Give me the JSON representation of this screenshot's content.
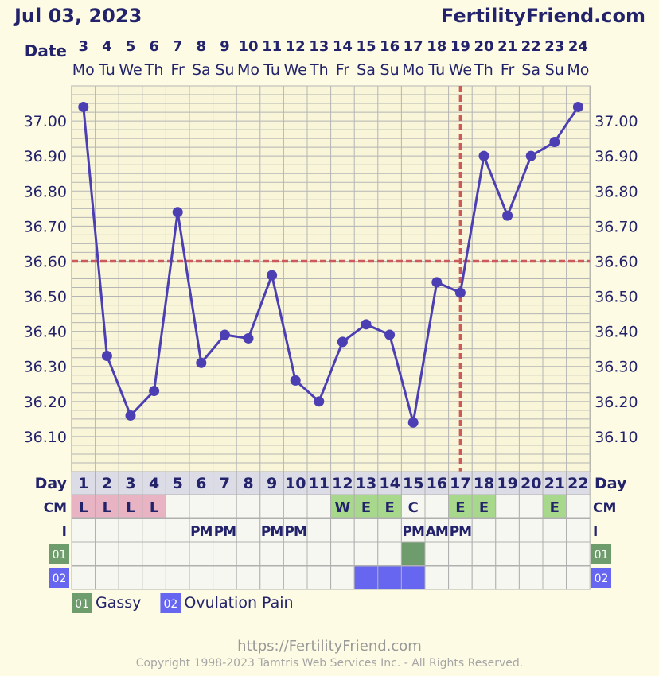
{
  "header": {
    "date": "Jul 03, 2023",
    "brand": "FertilityFriend.com",
    "date_row_label": "Date"
  },
  "chart_data": {
    "type": "line",
    "dates": [
      "3",
      "4",
      "5",
      "6",
      "7",
      "8",
      "9",
      "10",
      "11",
      "12",
      "13",
      "14",
      "15",
      "16",
      "17",
      "18",
      "19",
      "20",
      "21",
      "22",
      "23",
      "24"
    ],
    "weekdays": [
      "Mo",
      "Tu",
      "We",
      "Th",
      "Fr",
      "Sa",
      "Su",
      "Mo",
      "Tu",
      "We",
      "Th",
      "Fr",
      "Sa",
      "Su",
      "Mo",
      "Tu",
      "We",
      "Th",
      "Fr",
      "Sa",
      "Su",
      "Mo"
    ],
    "cycle_days": [
      1,
      2,
      3,
      4,
      5,
      6,
      7,
      8,
      9,
      10,
      11,
      12,
      13,
      14,
      15,
      16,
      17,
      18,
      19,
      20,
      21,
      22
    ],
    "series": [
      {
        "values": [
          37.04,
          36.33,
          36.16,
          36.23,
          36.74,
          36.31,
          36.39,
          36.38,
          36.56,
          36.26,
          36.2,
          36.37,
          36.42,
          36.39,
          36.14,
          36.54,
          36.51,
          36.9,
          36.73,
          36.9,
          36.94,
          37.04
        ]
      }
    ],
    "y_ticks": [
      "37.00",
      "36.90",
      "36.80",
      "36.70",
      "36.60",
      "36.50",
      "36.40",
      "36.30",
      "36.20",
      "36.10"
    ],
    "ylim": [
      36.0,
      37.1
    ],
    "coverline": 36.6,
    "ovulation_day": 17,
    "grid": true,
    "line_color": "#4b3fb3",
    "coverline_color": "#cc5a5a"
  },
  "rows": {
    "day_label": "Day",
    "cm_label": "CM",
    "i_label": "I",
    "cm": [
      "L",
      "L",
      "L",
      "L",
      "",
      "",
      "",
      "",
      "",
      "",
      "",
      "W",
      "E",
      "E",
      "C",
      "",
      "E",
      "E",
      "",
      "",
      "E",
      ""
    ],
    "cm_colors": {
      "L": "#e8b4c4",
      "W": "#a8d88c",
      "E": "#a8d88c",
      "C": ""
    },
    "intercourse": [
      "",
      "",
      "",
      "",
      "",
      "PM",
      "PM",
      "",
      "PM",
      "PM",
      "",
      "",
      "",
      "",
      "PM",
      "AM",
      "PM",
      "",
      "",
      "",
      "",
      ""
    ],
    "symptoms": [
      {
        "code": "01",
        "name": "Gassy",
        "color": "#6f9c6c",
        "days": [
          15
        ]
      },
      {
        "code": "02",
        "name": "Ovulation Pain",
        "color": "#6666f0",
        "days": [
          13,
          14,
          15
        ]
      }
    ]
  },
  "footer": {
    "url": "https://FertilityFriend.com",
    "copyright": "Copyright 1998-2023 Tamtris Web Services Inc. - All Rights Reserved."
  }
}
